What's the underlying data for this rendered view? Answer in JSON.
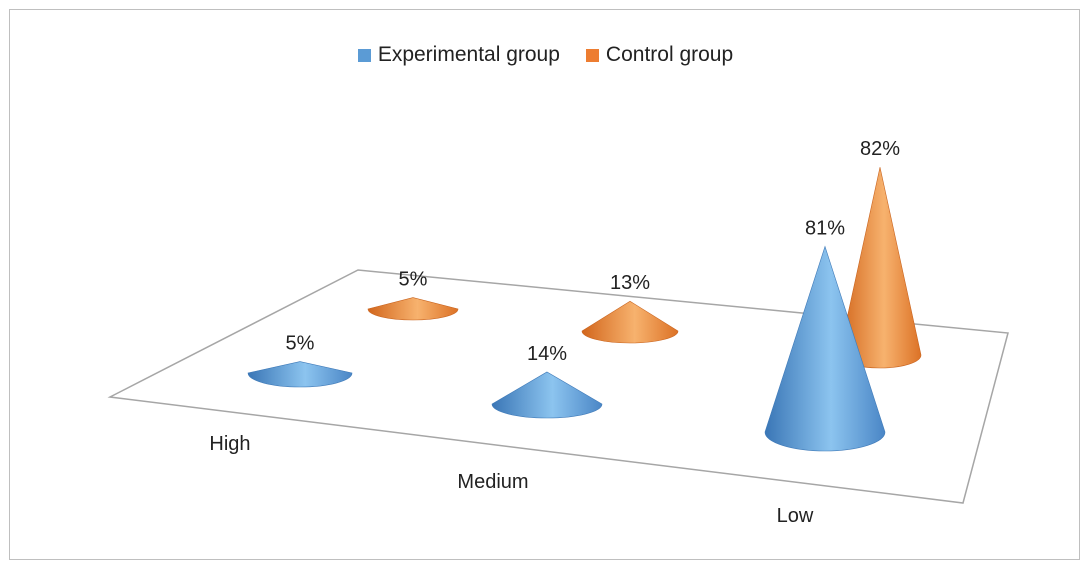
{
  "chart_data": {
    "type": "bar",
    "style": "3d-cone",
    "categories": [
      "High",
      "Medium",
      "Low"
    ],
    "series": [
      {
        "name": "Experimental group",
        "values": [
          5,
          14,
          81
        ],
        "labels": [
          "5%",
          "14%",
          "81%"
        ],
        "color": "#5b9bd5"
      },
      {
        "name": "Control group",
        "values": [
          5,
          13,
          82
        ],
        "labels": [
          "5%",
          "13%",
          "82%"
        ],
        "color": "#ed7d31"
      }
    ],
    "value_unit": "%",
    "legend_position": "top",
    "grid": false
  }
}
